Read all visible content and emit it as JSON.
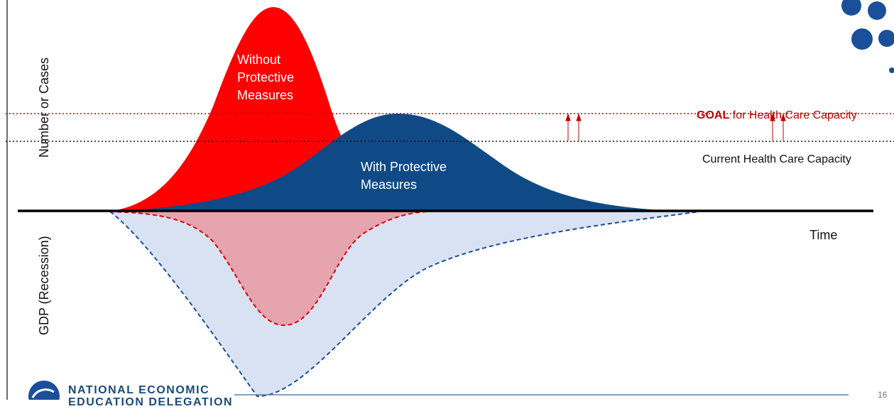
{
  "labels": {
    "without": "Without Protective Measures",
    "without_lines": [
      "Without",
      "Protective",
      "Measures"
    ],
    "with_lines": [
      "With Protective",
      "Measures"
    ],
    "y_axis_top": "Number or Cases",
    "y_axis_bottom": "GDP (Recession)",
    "goal_bold": "GOAL",
    "goal_rest": " for Health Care Capacity",
    "current": "Current Health Care Capacity",
    "time": "Time"
  },
  "footer": {
    "org_line1": "NATIONAL ECONOMIC",
    "org_line2": "EDUCATION DELEGATION",
    "page_number": "16"
  },
  "colors": {
    "without_fill": "#ff0000",
    "with_fill": "#0f4a86",
    "recession_red_fill": "#e6a4ae",
    "recession_blue_fill": "#d9e2f3",
    "goal_line": "#c00000",
    "current_line": "#111111",
    "brand": "#1a4f9a"
  }
}
